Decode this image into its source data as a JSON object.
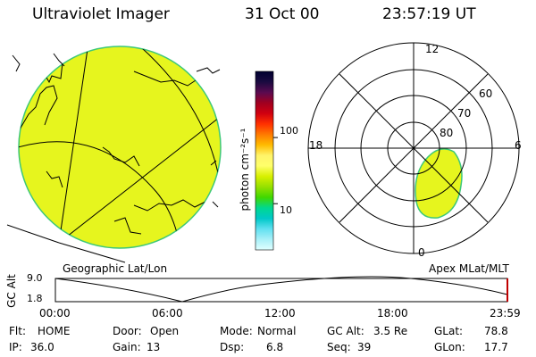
{
  "header": {
    "instrument": "Ultraviolet Imager",
    "date": "31 Oct 00",
    "time": "23:57:19 UT"
  },
  "colors": {
    "background": "#ffffff",
    "image_fill": "#e6f51e",
    "image_edge": "#3cc878",
    "lines": "#000000",
    "alt_marker": "#c00000"
  },
  "colorbar": {
    "unit_label": "photon cm⁻²s⁻¹",
    "ticks": [
      {
        "label": "100",
        "value": 100
      },
      {
        "label": "10",
        "value": 10
      }
    ],
    "scale": "log",
    "stops": [
      "#000030",
      "#1a0a40",
      "#5a0a50",
      "#a00020",
      "#d00010",
      "#ff3000",
      "#ff7a00",
      "#ffbb00",
      "#fff46a",
      "#ffff6a",
      "#d8f000",
      "#96e000",
      "#40d800",
      "#00d890",
      "#00c8c8",
      "#60e0f0",
      "#a8f0f8",
      "#e0ffff"
    ]
  },
  "left_panel": {
    "caption": "Geographic Lat/Lon"
  },
  "right_panel": {
    "caption": "Apex MLat/MLT",
    "mlt_labels": {
      "top": "12",
      "bottom": "0",
      "left": "18",
      "right": "6"
    },
    "lat_labels": [
      "60",
      "70",
      "80"
    ]
  },
  "altitude_plot": {
    "ylabel": "GC Alt",
    "y_ticks": [
      "9.0",
      "1.8"
    ],
    "x_ticks": [
      "00:00",
      "06:00",
      "12:00",
      "18:00",
      "23:59"
    ]
  },
  "status": {
    "flt": {
      "label": "Flt:",
      "value": "HOME"
    },
    "ip": {
      "label": "IP:",
      "value": "36.0"
    },
    "door": {
      "label": "Door:",
      "value": "Open"
    },
    "gain": {
      "label": "Gain:",
      "value": "13"
    },
    "mode": {
      "label": "Mode:",
      "value": "Normal"
    },
    "dsp": {
      "label": "Dsp:",
      "value": "6.8"
    },
    "gc_alt": {
      "label": "GC Alt:",
      "value": "3.5 Re"
    },
    "seq": {
      "label": "Seq:",
      "value": "39"
    },
    "glat": {
      "label": "GLat:",
      "value": "78.8"
    },
    "glon": {
      "label": "GLon:",
      "value": "17.7"
    }
  }
}
